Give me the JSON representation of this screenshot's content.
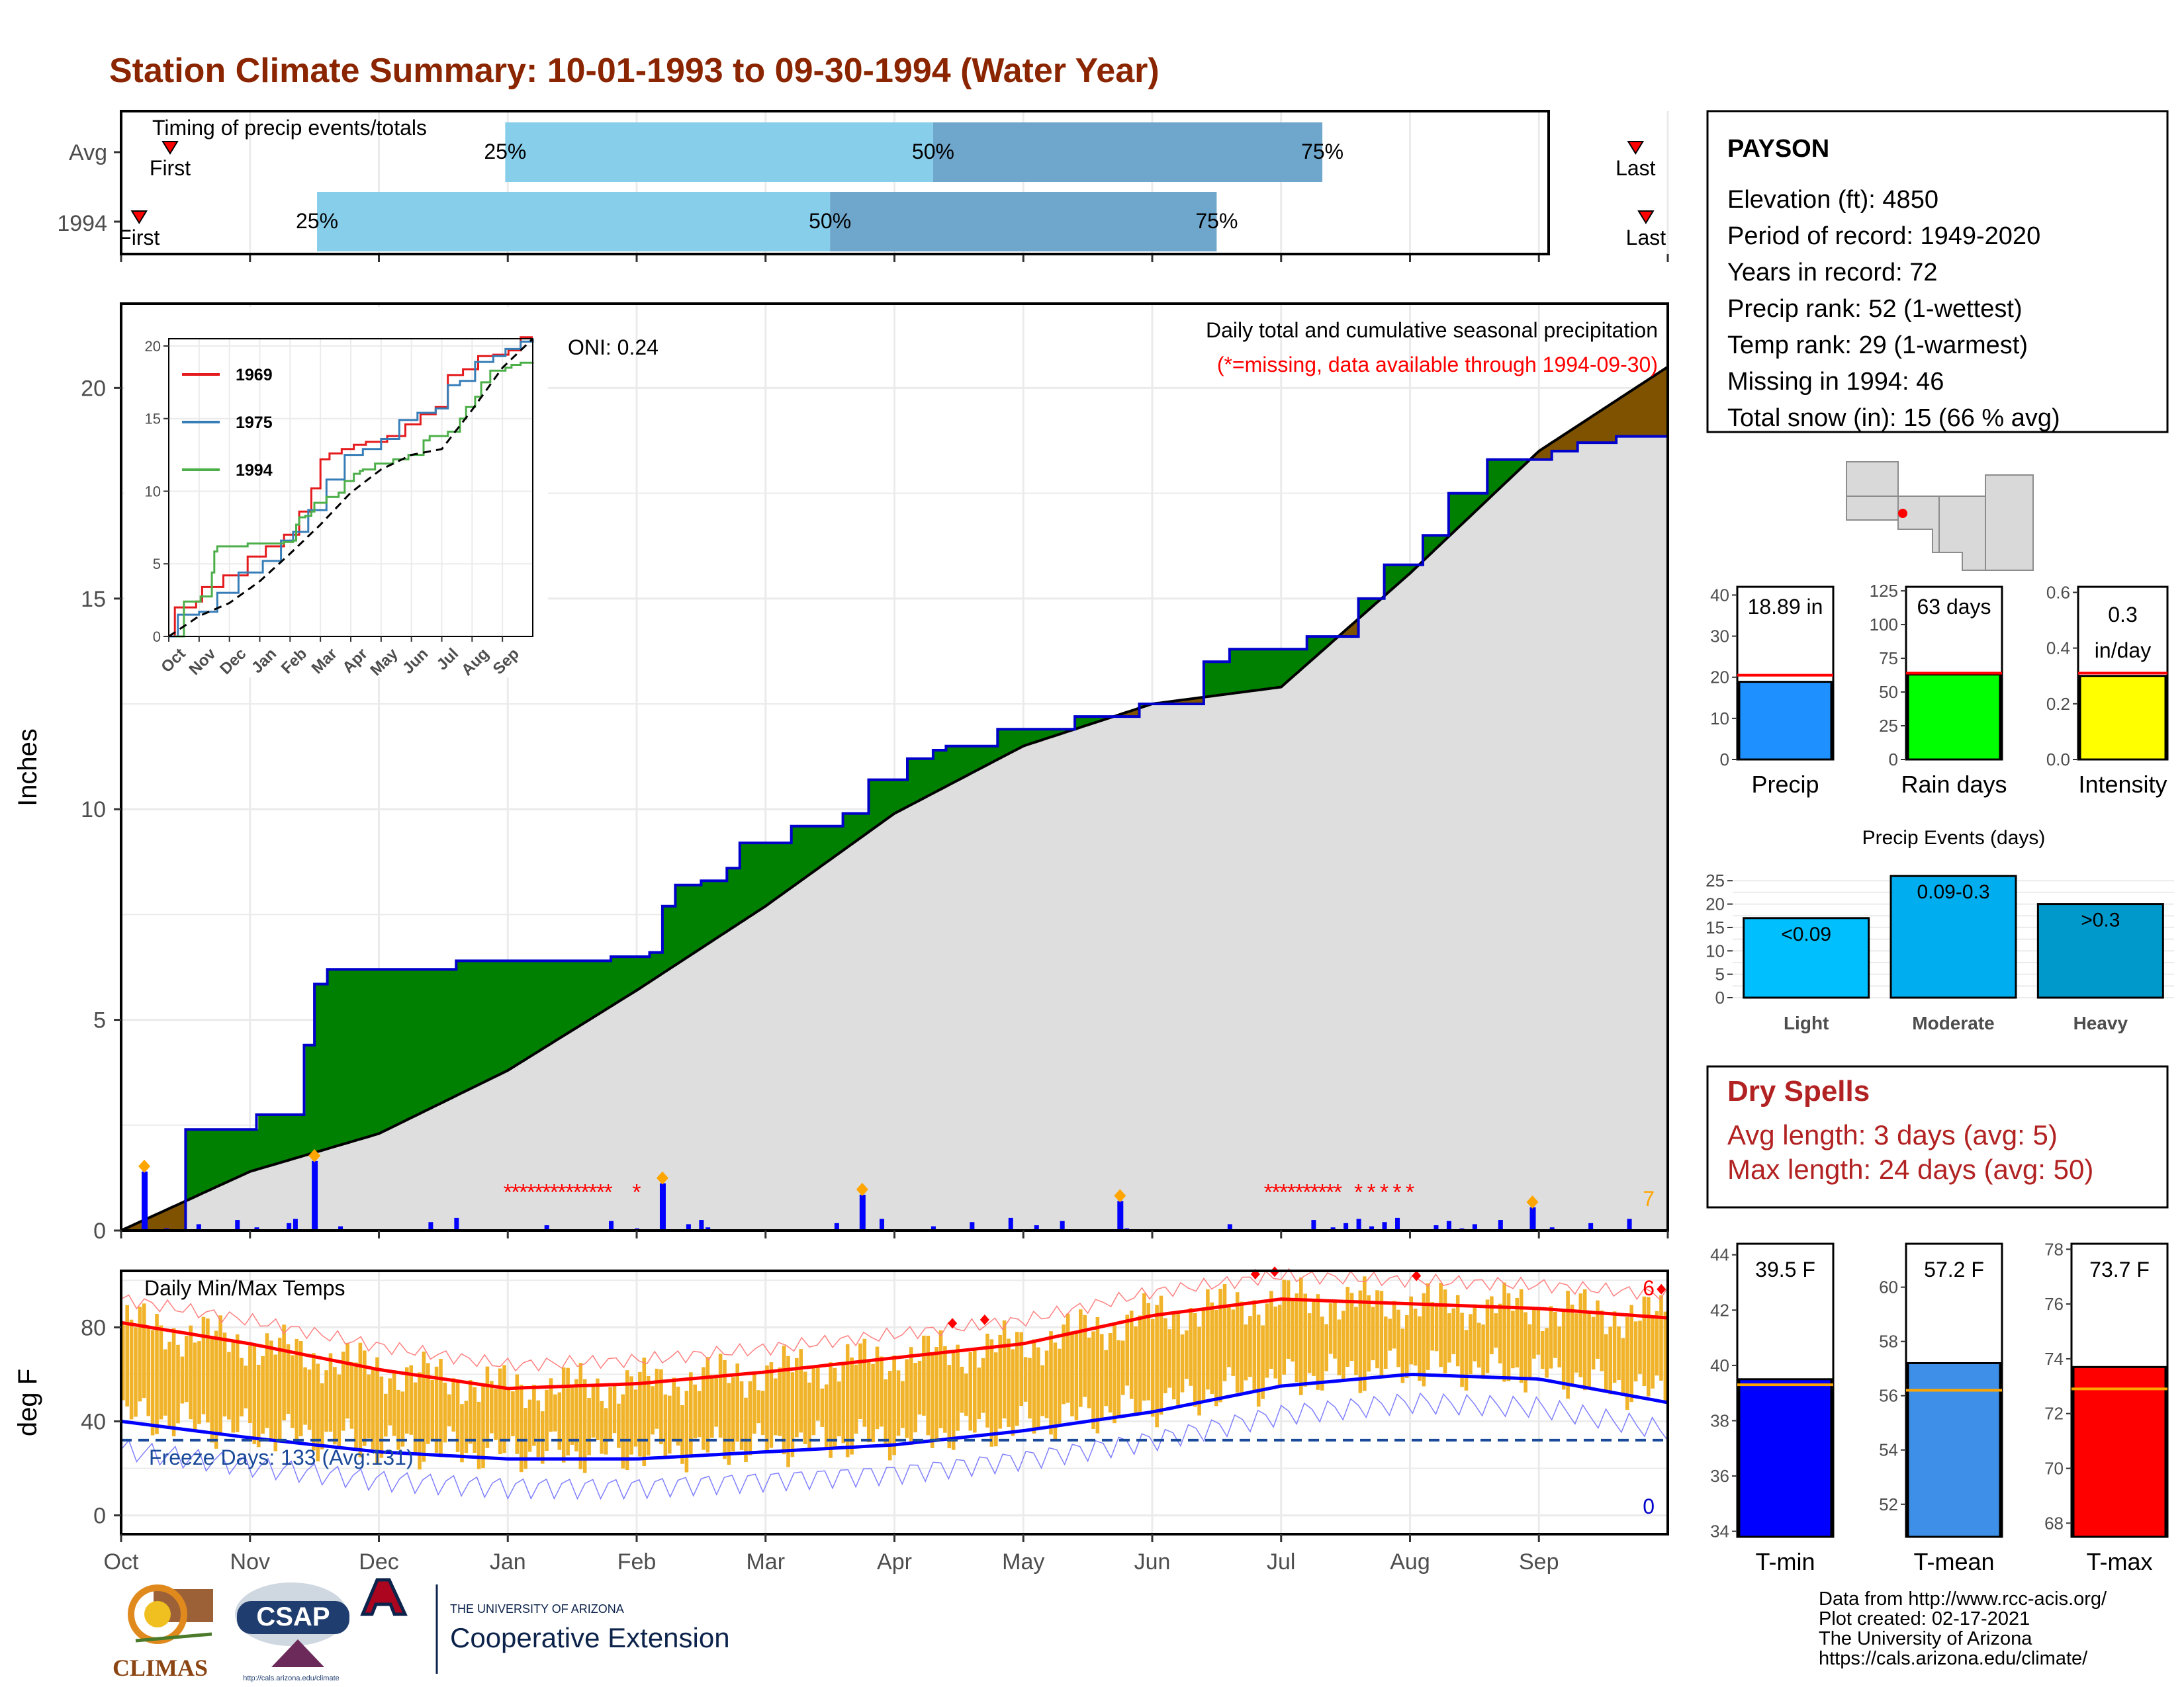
{
  "title": "Station Climate Summary: 10-01-1993 to 09-30-1994 (Water Year)",
  "colors": {
    "title": "#8b2500",
    "light_blue": "#87ceeb",
    "mid_blue": "#6fa6cc",
    "green": "#008000",
    "brown": "#7f5200",
    "cum_gray": "#dedede",
    "precip_bar": "#1e90ff",
    "rain_green": "#00ff00",
    "intensity_yellow": "#ffff00",
    "tmin_blue": "#0000ff",
    "tmean_blue": "#3d8fe8",
    "tmax_red": "#ff0000",
    "dry_red": "#b22222",
    "range_orange": "#f0b32a"
  },
  "timing": {
    "label": "Timing of precip events/totals",
    "rows": [
      {
        "name": "Avg",
        "first": "First",
        "p25": "25%",
        "p50": "50%",
        "p75": "75%",
        "last": "Last",
        "first_month": 0.38,
        "p25_month": 2.98,
        "p50_month": 6.3,
        "p75_month": 9.32,
        "last_month": 11.75
      },
      {
        "name": "1994",
        "first": "First",
        "p25": "25%",
        "p50": "50%",
        "p75": "75%",
        "last": "Last",
        "first_month": 0.14,
        "p25_month": 1.52,
        "p50_month": 5.5,
        "p75_month": 8.5,
        "last_month": 11.83
      }
    ]
  },
  "station": {
    "name": "PAYSON",
    "lines": [
      "Elevation (ft): 4850",
      "Period of record: 1949-2020",
      "Years in record: 72",
      "Precip rank: 52 (1-wettest)",
      "Temp rank: 29 (1-warmest)",
      "Missing in 1994: 46",
      "Total snow (in): 15 (66 % avg)"
    ]
  },
  "main": {
    "ylabel": "Inches",
    "annotation1": "Daily total and cumulative seasonal precipitation",
    "annotation2": "(*=missing, data available through 1994-09-30)",
    "oni": "ONI: 0.24",
    "right_count": "7",
    "yticks": [
      "0",
      "5",
      "10",
      "15",
      "20"
    ],
    "month_labels": [
      "Oct",
      "Nov",
      "Dec",
      "Jan",
      "Feb",
      "Mar",
      "Apr",
      "May",
      "Jun",
      "Jul",
      "Aug",
      "Sep"
    ]
  },
  "temp": {
    "label": "Daily Min/Max Temps",
    "ylabel": "deg F",
    "freeze": "Freeze Days: 133 (Avg:131)",
    "count_hi": "6",
    "count_lo": "0",
    "yticks": [
      "0",
      "40",
      "80"
    ]
  },
  "inset": {
    "legend": [
      "1969",
      "1975",
      "1994"
    ],
    "legend_colors": [
      "#e41a1c",
      "#377eb8",
      "#4daf4a"
    ],
    "yticks": [
      "0",
      "5",
      "10",
      "15",
      "20"
    ],
    "xticks": [
      "Oct",
      "Nov",
      "Dec",
      "Jan",
      "Feb",
      "Mar",
      "Apr",
      "May",
      "Jun",
      "Jul",
      "Aug",
      "Sep"
    ]
  },
  "mini_bars": [
    {
      "label": "Precip",
      "value_text": "18.89 in",
      "value": 18.89,
      "avg": 20.5,
      "ymax": 42,
      "ticks": [
        "0",
        "10",
        "20",
        "30",
        "40"
      ],
      "color": "#1e90ff"
    },
    {
      "label": "Rain days",
      "value_text": "63 days",
      "value": 63,
      "avg": 64,
      "ymax": 128,
      "ticks": [
        "0",
        "25",
        "50",
        "75",
        "100",
        "125"
      ],
      "color": "#00ff00"
    },
    {
      "label": "Intensity",
      "value_text": "0.3\nin/day",
      "value_line1": "0.3",
      "value_line2": "in/day",
      "value": 0.3,
      "avg": 0.31,
      "ymax": 0.62,
      "ticks": [
        "0.0",
        "0.2",
        "0.4",
        "0.6"
      ],
      "color": "#ffff00"
    }
  ],
  "events": {
    "title": "Precip Events (days)",
    "categories": [
      "Light",
      "Moderate",
      "Heavy"
    ],
    "bar_labels": [
      "<0.09",
      "0.09-0.3",
      ">0.3"
    ],
    "values": [
      17,
      26,
      20
    ],
    "colors": [
      "#00bfff",
      "#00aeef",
      "#0099cc"
    ],
    "ticks": [
      "0",
      "5",
      "10",
      "15",
      "20",
      "25"
    ]
  },
  "dry": {
    "title": "Dry Spells",
    "avg": "Avg length: 3 days (avg: 5)",
    "max": "Max length: 24 days (avg: 50)"
  },
  "temp_bars": [
    {
      "label": "T-min",
      "value_text": "39.5 F",
      "value": 39.5,
      "avg": 39.3,
      "ymin": 33.8,
      "ymax": 44.4,
      "ticks": [
        "34",
        "36",
        "38",
        "40",
        "42",
        "44"
      ],
      "tick_vals": [
        34,
        36,
        38,
        40,
        42,
        44
      ],
      "color": "#0000ff"
    },
    {
      "label": "T-mean",
      "value_text": "57.2 F",
      "value": 57.2,
      "avg": 56.2,
      "ymin": 50.8,
      "ymax": 61.6,
      "ticks": [
        "52",
        "54",
        "56",
        "58",
        "60"
      ],
      "tick_vals": [
        52,
        54,
        56,
        58,
        60
      ],
      "color": "#3d8fe8"
    },
    {
      "label": "T-max",
      "value_text": "73.7 F",
      "value": 73.7,
      "avg": 72.9,
      "ymin": 67.5,
      "ymax": 78.2,
      "ticks": [
        "68",
        "70",
        "72",
        "74",
        "76",
        "78"
      ],
      "tick_vals": [
        68,
        70,
        72,
        74,
        76,
        78
      ],
      "color": "#ff0000"
    }
  ],
  "credits": [
    "Data from http://www.rcc-acis.org/",
    "Plot created: 02-17-2021",
    "The University of Arizona",
    "https://cals.arizona.edu/climate/"
  ],
  "logos": {
    "climas": "CLIMAS",
    "csap": "CSAP",
    "csap_url": "http://cals.arizona.edu/climate",
    "ua_small": "THE UNIVERSITY OF ARIZONA",
    "ua_big": "Cooperative Extension"
  },
  "chart_data": {
    "type": "area",
    "title": "Daily total and cumulative seasonal precipitation",
    "ylabel": "Inches",
    "ylim": [
      0,
      22
    ],
    "x_unit": "month index from Oct 1 (0=Oct 1, 12=Sep 30)",
    "series": [
      {
        "name": "1994",
        "x": [
          0.2,
          0.5,
          1.05,
          1.4,
          1.42,
          1.5,
          1.6,
          2.3,
          2.6,
          2.9,
          3.2,
          3.5,
          3.8,
          4.1,
          4.2,
          4.3,
          4.5,
          4.7,
          4.8,
          5.2,
          5.6,
          5.8,
          6.1,
          6.3,
          6.4,
          6.8,
          7.4,
          7.9,
          8.4,
          8.6,
          9.2,
          9.4,
          9.6,
          9.8,
          10.1,
          10.3,
          10.6,
          11.1,
          11.3,
          11.6,
          12.0
        ],
        "y": [
          0,
          2.4,
          2.75,
          2.75,
          4.4,
          5.85,
          6.2,
          6.2,
          6.4,
          6.4,
          6.4,
          6.4,
          6.5,
          6.6,
          7.7,
          8.2,
          8.3,
          8.6,
          9.2,
          9.6,
          9.9,
          10.7,
          11.2,
          11.4,
          11.5,
          11.9,
          12.2,
          12.5,
          13.5,
          13.8,
          14.1,
          14.1,
          15.0,
          15.8,
          16.5,
          17.5,
          18.3,
          18.5,
          18.7,
          18.85,
          18.89
        ]
      },
      {
        "name": "Avg",
        "x": [
          0,
          1,
          2,
          3,
          4,
          5,
          6,
          7,
          8,
          9,
          10,
          11,
          12
        ],
        "y": [
          0,
          1.4,
          2.3,
          3.8,
          5.7,
          7.7,
          9.9,
          11.5,
          12.5,
          12.9,
          15.6,
          18.5,
          20.5
        ]
      }
    ],
    "daily_precip_spikes": [
      {
        "month": 0.18,
        "inches": 1.4
      },
      {
        "month": 1.5,
        "inches": 1.65
      },
      {
        "month": 4.2,
        "inches": 1.12
      },
      {
        "month": 5.75,
        "inches": 0.85
      },
      {
        "month": 7.75,
        "inches": 0.7
      },
      {
        "month": 10.95,
        "inches": 0.55
      }
    ],
    "temperature": {
      "ylabel": "deg F",
      "ylim": [
        -8,
        104
      ],
      "month_x": [
        0,
        1,
        2,
        3,
        4,
        5,
        6,
        7,
        8,
        9,
        10,
        11,
        12
      ],
      "avg_max": [
        82,
        73,
        62,
        54,
        56,
        61,
        67,
        73,
        85,
        92,
        90,
        88,
        84
      ],
      "avg_min": [
        40,
        33,
        27,
        24,
        24,
        27,
        30,
        36,
        44,
        55,
        60,
        58,
        48
      ],
      "freeze_line": 32
    }
  }
}
